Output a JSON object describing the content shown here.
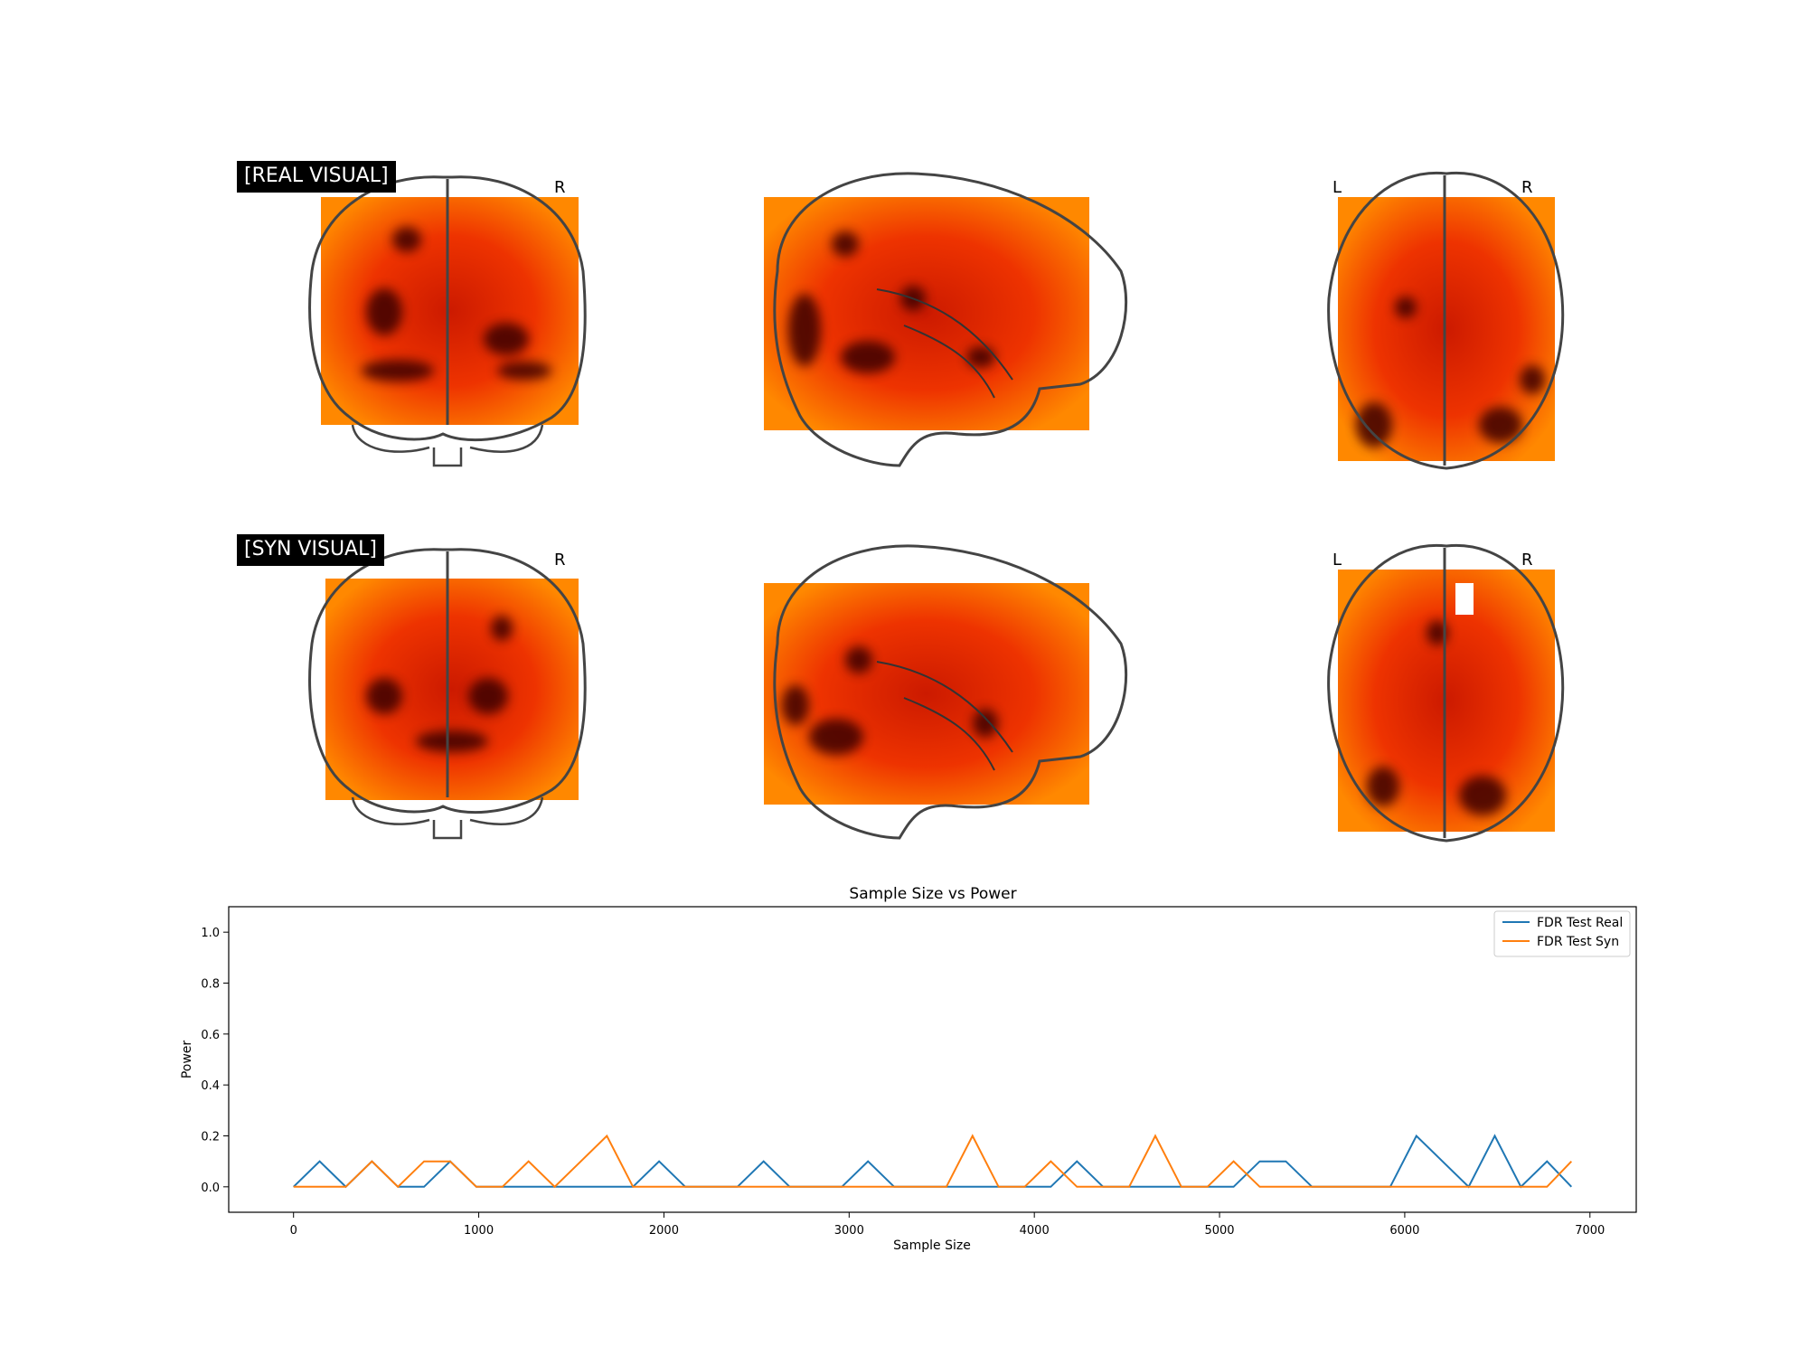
{
  "panels": [
    {
      "label": "[REAL VISUAL]",
      "views": [
        "coronal",
        "sagittal",
        "axial"
      ],
      "orient_coronal": "R",
      "orient_axial_left": "L",
      "orient_axial_right": "R"
    },
    {
      "label": "[SYN VISUAL]",
      "views": [
        "coronal",
        "sagittal",
        "axial"
      ],
      "orient_coronal": "R",
      "orient_axial_left": "L",
      "orient_axial_right": "R"
    }
  ],
  "colors": {
    "real": "#1f77b4",
    "syn": "#ff7f0e",
    "heat_low": "#ff9a00",
    "heat_high": "#2a0000",
    "outline": "#444444"
  },
  "chart_data": {
    "type": "line",
    "title": "Sample Size vs Power",
    "xlabel": "Sample Size",
    "ylabel": "Power",
    "xlim": [
      -350,
      7250
    ],
    "ylim": [
      -0.1,
      1.1
    ],
    "xticks": [
      0,
      1000,
      2000,
      3000,
      4000,
      5000,
      6000,
      7000
    ],
    "yticks": [
      0.0,
      0.2,
      0.4,
      0.6,
      0.8,
      1.0
    ],
    "xtick_labels": [
      "0",
      "1000",
      "2000",
      "3000",
      "4000",
      "5000",
      "6000",
      "7000"
    ],
    "ytick_labels": [
      "0.0",
      "0.2",
      "0.4",
      "0.6",
      "0.8",
      "1.0"
    ],
    "legend_position": "top-right",
    "x": [
      0,
      141,
      282,
      423,
      564,
      705,
      846,
      987,
      1128,
      1269,
      1410,
      1551,
      1692,
      1833,
      1974,
      2115,
      2256,
      2397,
      2538,
      2679,
      2820,
      2961,
      3102,
      3243,
      3384,
      3525,
      3666,
      3807,
      3948,
      4089,
      4230,
      4371,
      4512,
      4653,
      4794,
      4935,
      5076,
      5217,
      5358,
      5499,
      5640,
      5781,
      5922,
      6063,
      6204,
      6345,
      6486,
      6627,
      6768,
      6900
    ],
    "series": [
      {
        "name": "FDR Test Real",
        "values": [
          0.0,
          0.1,
          0.0,
          0.1,
          0.0,
          0.0,
          0.1,
          0.0,
          0.0,
          0.0,
          0.0,
          0.0,
          0.0,
          0.0,
          0.1,
          0.0,
          0.0,
          0.0,
          0.1,
          0.0,
          0.0,
          0.0,
          0.1,
          0.0,
          0.0,
          0.0,
          0.0,
          0.0,
          0.0,
          0.0,
          0.1,
          0.0,
          0.0,
          0.0,
          0.0,
          0.0,
          0.0,
          0.1,
          0.1,
          0.0,
          0.0,
          0.0,
          0.0,
          0.2,
          0.1,
          0.0,
          0.2,
          0.0,
          0.1,
          0.0
        ]
      },
      {
        "name": "FDR Test Syn",
        "values": [
          0.0,
          0.0,
          0.0,
          0.1,
          0.0,
          0.1,
          0.1,
          0.0,
          0.0,
          0.1,
          0.0,
          0.1,
          0.2,
          0.0,
          0.0,
          0.0,
          0.0,
          0.0,
          0.0,
          0.0,
          0.0,
          0.0,
          0.0,
          0.0,
          0.0,
          0.0,
          0.2,
          0.0,
          0.0,
          0.1,
          0.0,
          0.0,
          0.0,
          0.2,
          0.0,
          0.0,
          0.1,
          0.0,
          0.0,
          0.0,
          0.0,
          0.0,
          0.0,
          0.0,
          0.0,
          0.0,
          0.0,
          0.0,
          0.0,
          0.1
        ]
      }
    ]
  }
}
